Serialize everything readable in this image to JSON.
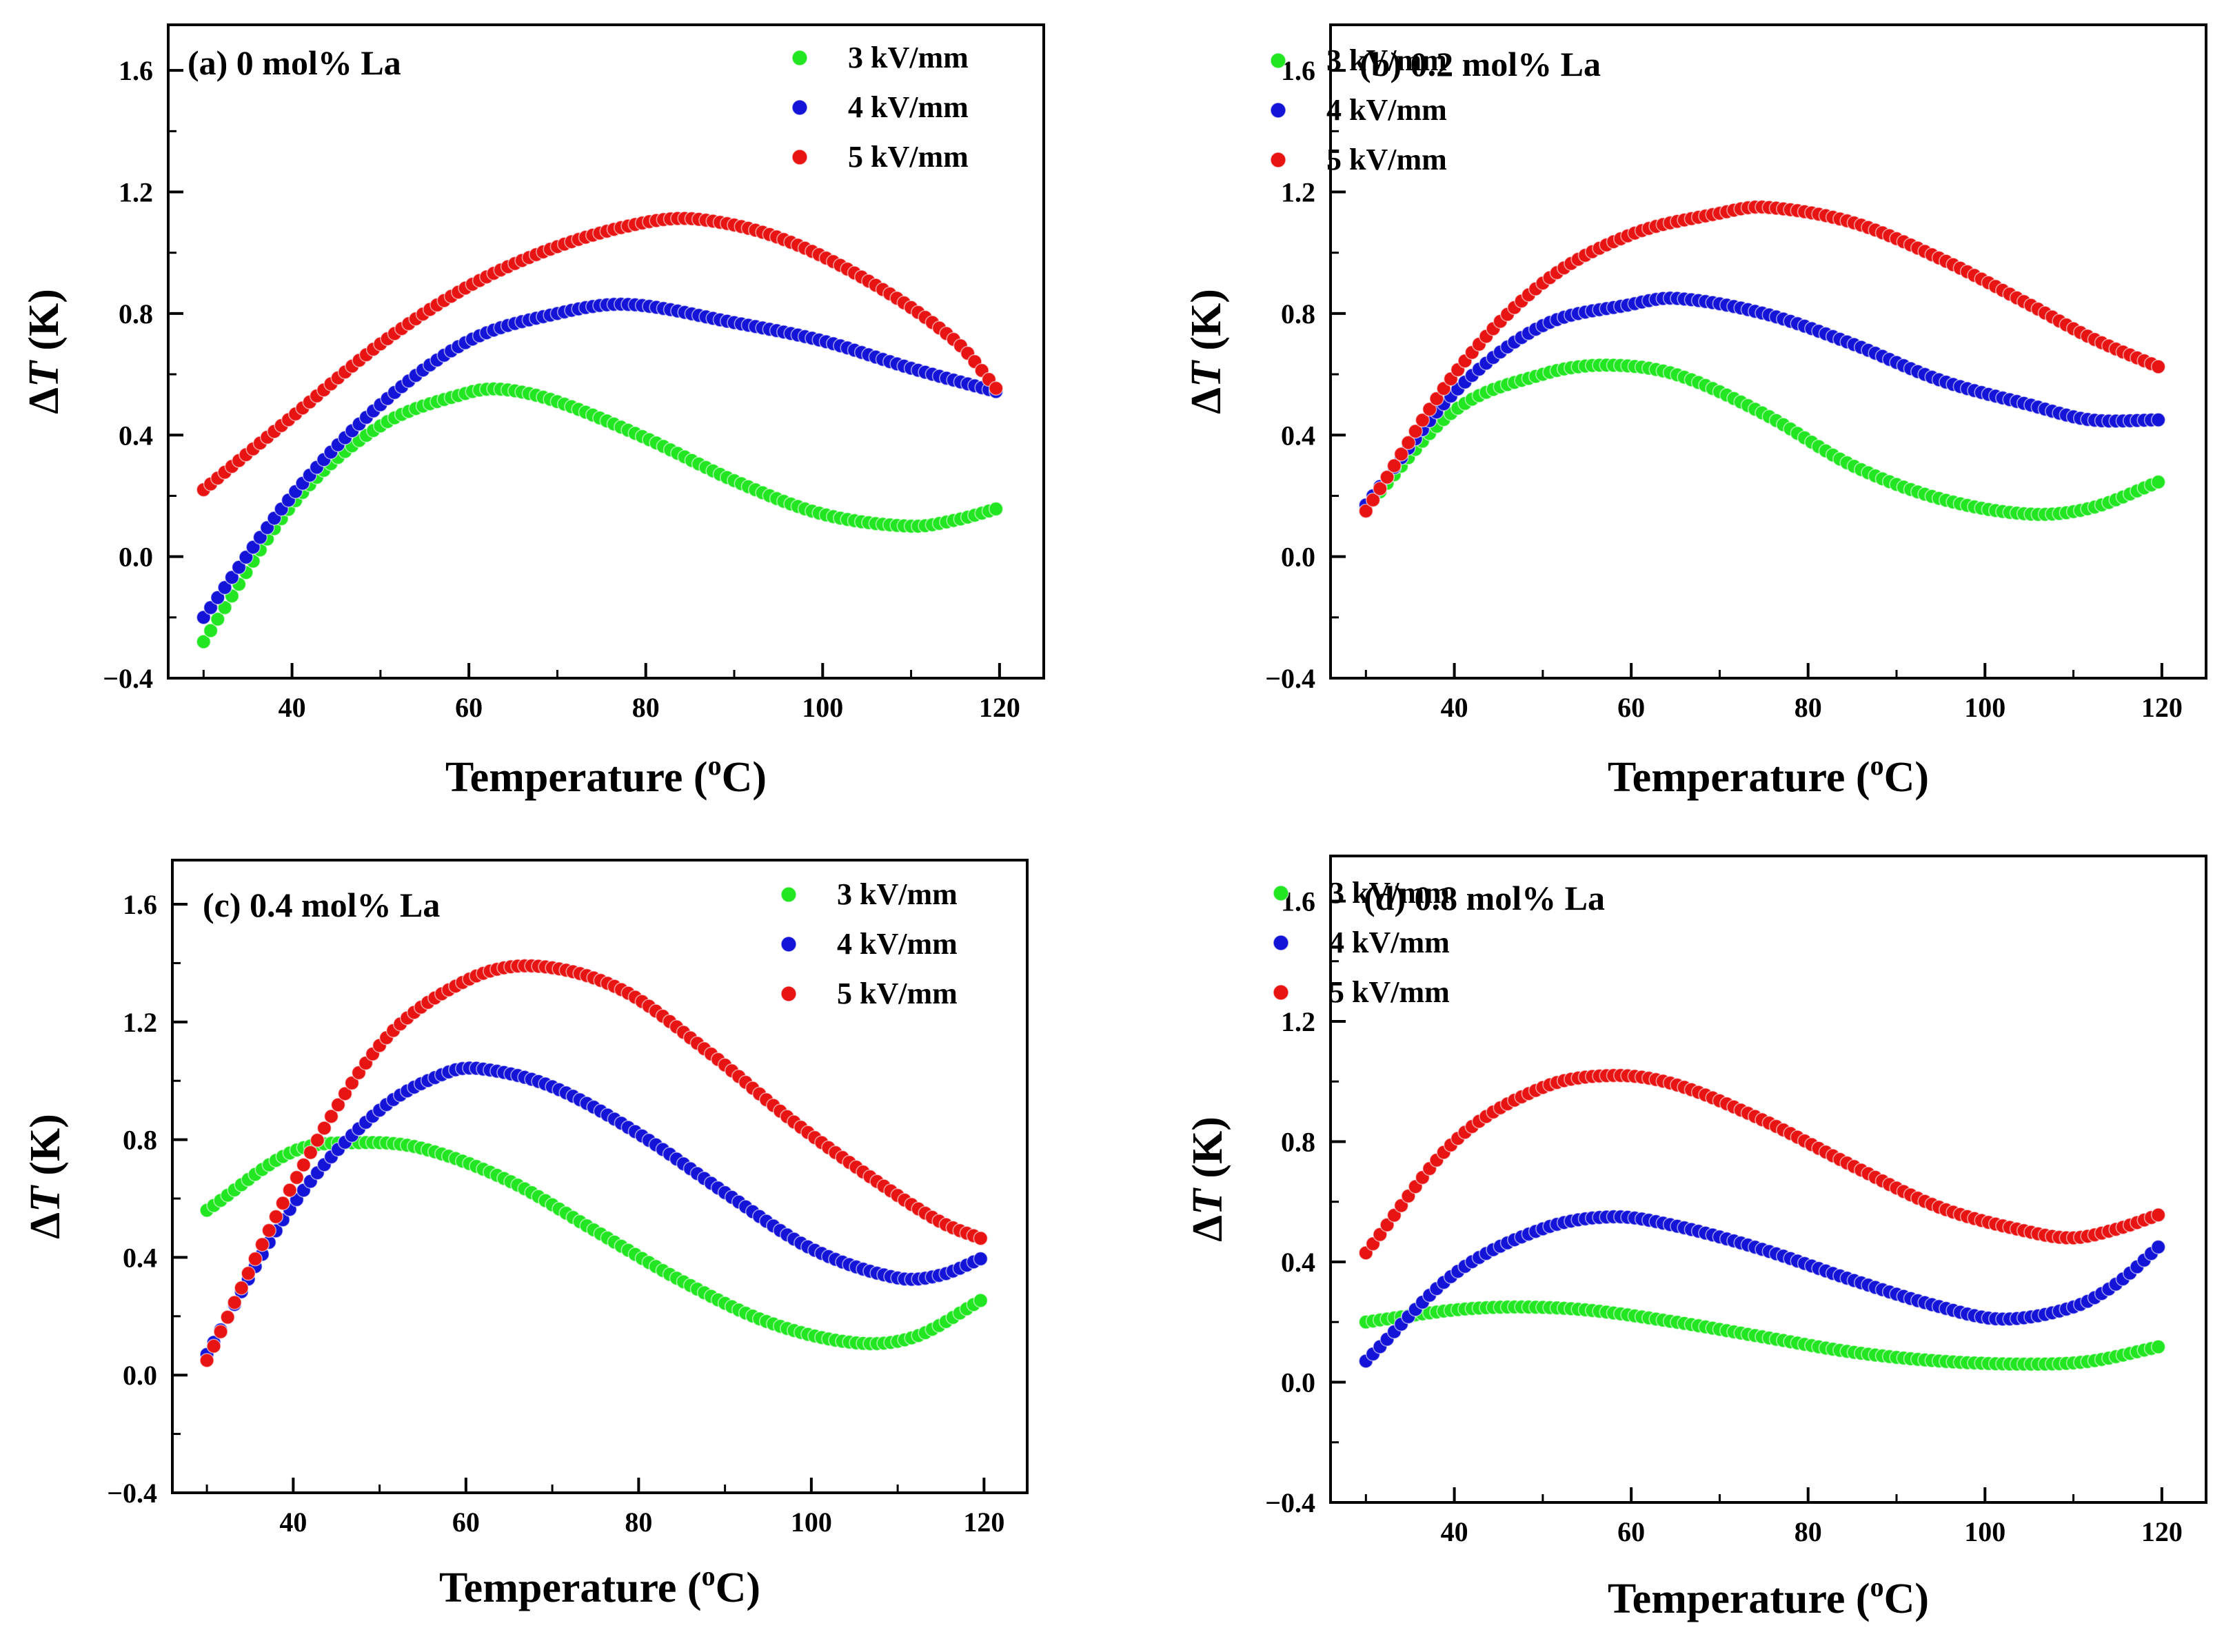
{
  "figure": {
    "colors": {
      "3 kV/mm": "#22e622",
      "4 kV/mm": "#1414d8",
      "5 kV/mm": "#e81414"
    }
  },
  "chart_data": [
    {
      "type": "scatter",
      "title": "(a) 0 mol% La",
      "xlabel": "Temperature",
      "xunit": "(oC)",
      "ylabel": "ΔT (K)",
      "xlim": [
        26,
        125
      ],
      "ylim": [
        -0.4,
        1.75
      ],
      "xticks": [
        "40",
        "60",
        "80",
        "100",
        "120"
      ],
      "yticks": [
        "−0.4",
        "0.0",
        "0.4",
        "0.8",
        "1.2",
        "1.6"
      ],
      "x_range": [
        30,
        120
      ],
      "series": [
        {
          "name": "3 kV/mm",
          "key_points": [
            [
              30,
              -0.28
            ],
            [
              40,
              0.17
            ],
            [
              50,
              0.43
            ],
            [
              60,
              0.54
            ],
            [
              64,
              0.55
            ],
            [
              70,
              0.51
            ],
            [
              80,
              0.39
            ],
            [
              90,
              0.25
            ],
            [
              100,
              0.14
            ],
            [
              110,
              0.1
            ],
            [
              115,
              0.12
            ],
            [
              120,
              0.16
            ]
          ]
        },
        {
          "name": "4 kV/mm",
          "key_points": [
            [
              30,
              -0.2
            ],
            [
              40,
              0.2
            ],
            [
              50,
              0.5
            ],
            [
              60,
              0.71
            ],
            [
              70,
              0.8
            ],
            [
              78,
              0.83
            ],
            [
              90,
              0.77
            ],
            [
              100,
              0.71
            ],
            [
              110,
              0.62
            ],
            [
              120,
              0.54
            ]
          ]
        },
        {
          "name": "5 kV/mm",
          "key_points": [
            [
              30,
              0.22
            ],
            [
              40,
              0.46
            ],
            [
              50,
              0.7
            ],
            [
              60,
              0.89
            ],
            [
              70,
              1.02
            ],
            [
              80,
              1.1
            ],
            [
              86,
              1.11
            ],
            [
              95,
              1.05
            ],
            [
              105,
              0.91
            ],
            [
              115,
              0.71
            ],
            [
              120,
              0.54
            ]
          ]
        }
      ]
    },
    {
      "type": "scatter",
      "title": "(b) 0.2 mol% La",
      "xlabel": "Temperature",
      "xunit": "(oC)",
      "ylabel": "ΔT (K)",
      "xlim": [
        26,
        125
      ],
      "ylim": [
        -0.4,
        1.75
      ],
      "xticks": [
        "40",
        "60",
        "80",
        "100",
        "120"
      ],
      "yticks": [
        "−0.4",
        "0.0",
        "0.4",
        "0.8",
        "1.2",
        "1.6"
      ],
      "x_range": [
        30,
        120
      ],
      "series": [
        {
          "name": "3 kV/mm",
          "key_points": [
            [
              30,
              0.16
            ],
            [
              40,
              0.48
            ],
            [
              50,
              0.6
            ],
            [
              57,
              0.63
            ],
            [
              65,
              0.6
            ],
            [
              75,
              0.47
            ],
            [
              85,
              0.3
            ],
            [
              95,
              0.19
            ],
            [
              105,
              0.14
            ],
            [
              112,
              0.16
            ],
            [
              120,
              0.25
            ]
          ]
        },
        {
          "name": "4 kV/mm",
          "key_points": [
            [
              30,
              0.17
            ],
            [
              40,
              0.54
            ],
            [
              50,
              0.76
            ],
            [
              60,
              0.83
            ],
            [
              65,
              0.85
            ],
            [
              75,
              0.8
            ],
            [
              85,
              0.7
            ],
            [
              95,
              0.58
            ],
            [
              105,
              0.5
            ],
            [
              112,
              0.45
            ],
            [
              120,
              0.45
            ]
          ]
        },
        {
          "name": "5 kV/mm",
          "key_points": [
            [
              30,
              0.15
            ],
            [
              40,
              0.6
            ],
            [
              50,
              0.9
            ],
            [
              60,
              1.06
            ],
            [
              70,
              1.13
            ],
            [
              75,
              1.15
            ],
            [
              85,
              1.1
            ],
            [
              95,
              0.98
            ],
            [
              105,
              0.83
            ],
            [
              112,
              0.72
            ],
            [
              120,
              0.62
            ]
          ]
        }
      ]
    },
    {
      "type": "scatter",
      "title": "(c) 0.4 mol% La",
      "xlabel": "Temperature",
      "xunit": "(oC)",
      "ylabel": "ΔT (K)",
      "xlim": [
        26,
        125
      ],
      "ylim": [
        -0.4,
        1.75
      ],
      "xticks": [
        "40",
        "60",
        "80",
        "100",
        "120"
      ],
      "yticks": [
        "−0.4",
        "0.0",
        "0.4",
        "0.8",
        "1.2",
        "1.6"
      ],
      "x_range": [
        30,
        120
      ],
      "series": [
        {
          "name": "3 kV/mm",
          "key_points": [
            [
              30,
              0.56
            ],
            [
              40,
              0.76
            ],
            [
              48,
              0.79
            ],
            [
              55,
              0.77
            ],
            [
              65,
              0.66
            ],
            [
              75,
              0.49
            ],
            [
              85,
              0.32
            ],
            [
              95,
              0.18
            ],
            [
              105,
              0.11
            ],
            [
              112,
              0.13
            ],
            [
              120,
              0.26
            ]
          ]
        },
        {
          "name": "4 kV/mm",
          "key_points": [
            [
              30,
              0.07
            ],
            [
              40,
              0.58
            ],
            [
              50,
              0.9
            ],
            [
              58,
              1.03
            ],
            [
              62,
              1.04
            ],
            [
              70,
              0.98
            ],
            [
              80,
              0.82
            ],
            [
              90,
              0.62
            ],
            [
              100,
              0.43
            ],
            [
              110,
              0.33
            ],
            [
              115,
              0.34
            ],
            [
              120,
              0.4
            ]
          ]
        },
        {
          "name": "5 kV/mm",
          "key_points": [
            [
              30,
              0.05
            ],
            [
              40,
              0.65
            ],
            [
              50,
              1.12
            ],
            [
              60,
              1.34
            ],
            [
              68,
              1.39
            ],
            [
              78,
              1.31
            ],
            [
              88,
              1.1
            ],
            [
              98,
              0.86
            ],
            [
              108,
              0.65
            ],
            [
              115,
              0.52
            ],
            [
              120,
              0.46
            ]
          ]
        }
      ]
    },
    {
      "type": "scatter",
      "title": "(d) 0.8 mol% La",
      "xlabel": "Temperature",
      "xunit": "(oC)",
      "ylabel": "ΔT (K)",
      "xlim": [
        26,
        125
      ],
      "ylim": [
        -0.4,
        1.75
      ],
      "xticks": [
        "40",
        "60",
        "80",
        "100",
        "120"
      ],
      "yticks": [
        "−0.4",
        "0.0",
        "0.4",
        "0.8",
        "1.2",
        "1.6"
      ],
      "x_range": [
        30,
        120
      ],
      "series": [
        {
          "name": "3 kV/mm",
          "key_points": [
            [
              30,
              0.2
            ],
            [
              40,
              0.24
            ],
            [
              47,
              0.25
            ],
            [
              55,
              0.24
            ],
            [
              65,
              0.2
            ],
            [
              75,
              0.15
            ],
            [
              85,
              0.1
            ],
            [
              95,
              0.07
            ],
            [
              105,
              0.06
            ],
            [
              112,
              0.07
            ],
            [
              120,
              0.12
            ]
          ]
        },
        {
          "name": "4 kV/mm",
          "key_points": [
            [
              30,
              0.07
            ],
            [
              40,
              0.36
            ],
            [
              50,
              0.51
            ],
            [
              58,
              0.55
            ],
            [
              65,
              0.52
            ],
            [
              75,
              0.44
            ],
            [
              85,
              0.34
            ],
            [
              95,
              0.25
            ],
            [
              102,
              0.21
            ],
            [
              110,
              0.25
            ],
            [
              115,
              0.33
            ],
            [
              120,
              0.46
            ]
          ]
        },
        {
          "name": "5 kV/mm",
          "key_points": [
            [
              30,
              0.43
            ],
            [
              40,
              0.8
            ],
            [
              50,
              0.98
            ],
            [
              58,
              1.02
            ],
            [
              65,
              0.99
            ],
            [
              75,
              0.87
            ],
            [
              85,
              0.72
            ],
            [
              95,
              0.58
            ],
            [
              105,
              0.5
            ],
            [
              110,
              0.48
            ],
            [
              115,
              0.51
            ],
            [
              120,
              0.56
            ]
          ]
        }
      ]
    }
  ]
}
